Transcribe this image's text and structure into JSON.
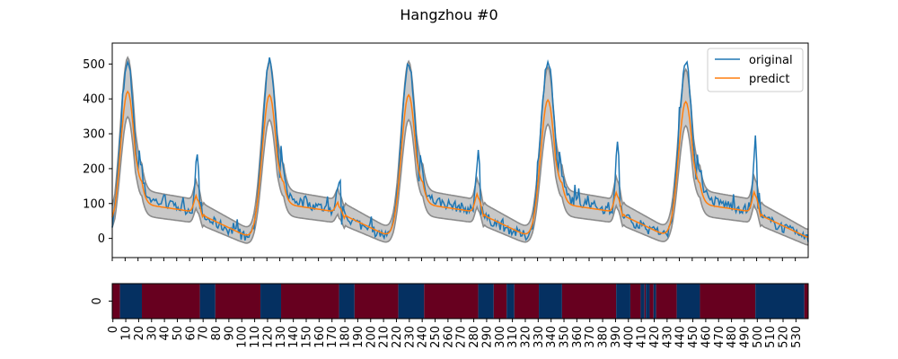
{
  "chart_data": [
    {
      "type": "line",
      "title": "Hangzhou #0",
      "xlabel": "",
      "ylabel": "",
      "xlim": [
        0,
        540
      ],
      "ylim": [
        -55,
        560
      ],
      "yticks": [
        0,
        100,
        200,
        300,
        400,
        500
      ],
      "legend": {
        "placement": "top-right",
        "entries": [
          "original",
          "predict"
        ]
      },
      "grid": false,
      "colors": {
        "original": "#1f77b4",
        "predict": "#ff7f0e",
        "band": "#c8c8c8",
        "band_edge": "#8c8c8c"
      },
      "peak_days": [
        {
          "center": 12,
          "original_peak": 500,
          "predict_peak": 435,
          "tail_peak": 230,
          "tail_center": 66
        },
        {
          "center": 122,
          "original_peak": 505,
          "predict_peak": 425,
          "tail_peak": 165,
          "tail_center": 176
        },
        {
          "center": 230,
          "original_peak": 500,
          "predict_peak": 425,
          "tail_peak": 245,
          "tail_center": 284
        },
        {
          "center": 338,
          "original_peak": 510,
          "predict_peak": 410,
          "tail_peak": 260,
          "tail_center": 392
        },
        {
          "center": 445,
          "original_peak": 500,
          "predict_peak": 405,
          "tail_peak": 265,
          "tail_center": 499
        }
      ],
      "series": [
        {
          "name": "original"
        },
        {
          "name": "predict"
        }
      ]
    },
    {
      "type": "heatmap",
      "ylabel_tick": "0",
      "xlim": [
        0,
        540
      ],
      "xticks": [
        0,
        10,
        20,
        30,
        40,
        50,
        60,
        70,
        80,
        90,
        100,
        110,
        120,
        130,
        140,
        150,
        160,
        170,
        180,
        190,
        200,
        210,
        220,
        230,
        240,
        250,
        260,
        270,
        280,
        290,
        300,
        310,
        320,
        330,
        340,
        350,
        360,
        370,
        380,
        390,
        400,
        410,
        420,
        430,
        440,
        450,
        460,
        470,
        480,
        490,
        500,
        510,
        520,
        530
      ],
      "colors": {
        "high": "#67001f",
        "low": "#053061"
      },
      "segments": [
        {
          "from": 0,
          "to": 6,
          "level": "high"
        },
        {
          "from": 6,
          "to": 23,
          "level": "low"
        },
        {
          "from": 23,
          "to": 68,
          "level": "high"
        },
        {
          "from": 68,
          "to": 80,
          "level": "low"
        },
        {
          "from": 80,
          "to": 115,
          "level": "high"
        },
        {
          "from": 115,
          "to": 131,
          "level": "low"
        },
        {
          "from": 131,
          "to": 176,
          "level": "high"
        },
        {
          "from": 176,
          "to": 188,
          "level": "low"
        },
        {
          "from": 188,
          "to": 222,
          "level": "high"
        },
        {
          "from": 222,
          "to": 242,
          "level": "low"
        },
        {
          "from": 242,
          "to": 284,
          "level": "high"
        },
        {
          "from": 284,
          "to": 296,
          "level": "low"
        },
        {
          "from": 296,
          "to": 306,
          "level": "high"
        },
        {
          "from": 306,
          "to": 312,
          "level": "low"
        },
        {
          "from": 312,
          "to": 331,
          "level": "high"
        },
        {
          "from": 331,
          "to": 349,
          "level": "low"
        },
        {
          "from": 349,
          "to": 391,
          "level": "high"
        },
        {
          "from": 391,
          "to": 402,
          "level": "low"
        },
        {
          "from": 402,
          "to": 410,
          "level": "high"
        },
        {
          "from": 410,
          "to": 413,
          "level": "low"
        },
        {
          "from": 413,
          "to": 414,
          "level": "high"
        },
        {
          "from": 414,
          "to": 417,
          "level": "low"
        },
        {
          "from": 417,
          "to": 420,
          "level": "high"
        },
        {
          "from": 420,
          "to": 422,
          "level": "low"
        },
        {
          "from": 422,
          "to": 438,
          "level": "high"
        },
        {
          "from": 438,
          "to": 456,
          "level": "low"
        },
        {
          "from": 456,
          "to": 499,
          "level": "high"
        },
        {
          "from": 499,
          "to": 537,
          "level": "low"
        },
        {
          "from": 537,
          "to": 540,
          "level": "high"
        }
      ]
    }
  ]
}
